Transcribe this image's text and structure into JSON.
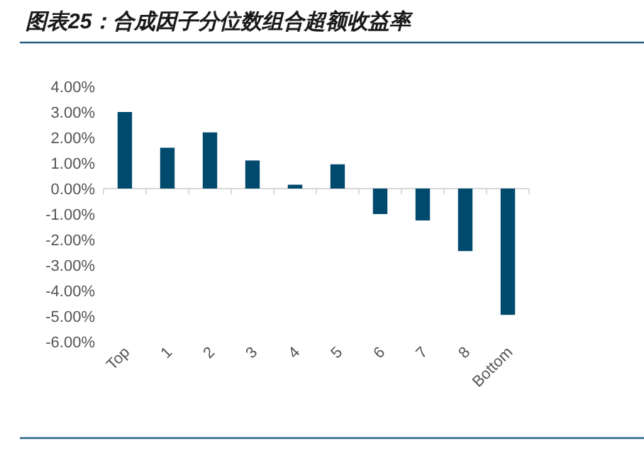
{
  "chart_data": {
    "type": "bar",
    "title": "图表25：合成因子分位数组合超额收益率",
    "categories": [
      "Top",
      "1",
      "2",
      "3",
      "4",
      "5",
      "6",
      "7",
      "8",
      "Bottom"
    ],
    "series": [
      {
        "color": "#004a6e",
        "values": [
          3.0,
          1.6,
          2.2,
          1.1,
          0.15,
          0.95,
          -1.0,
          -1.25,
          -2.45,
          -4.95
        ]
      }
    ],
    "ylim": [
      -6,
      4
    ],
    "yticks": [
      {
        "value": 4,
        "label": "4.00%"
      },
      {
        "value": 3,
        "label": "3.00%"
      },
      {
        "value": 2,
        "label": "2.00%"
      },
      {
        "value": 1,
        "label": "1.00%"
      },
      {
        "value": 0,
        "label": "0.00%"
      },
      {
        "value": -1,
        "label": "-1.00%"
      },
      {
        "value": -2,
        "label": "-2.00%"
      },
      {
        "value": -3,
        "label": "-3.00%"
      },
      {
        "value": -4,
        "label": "-4.00%"
      },
      {
        "value": -5,
        "label": "-5.00%"
      },
      {
        "value": -6,
        "label": "-6.00%"
      }
    ]
  }
}
